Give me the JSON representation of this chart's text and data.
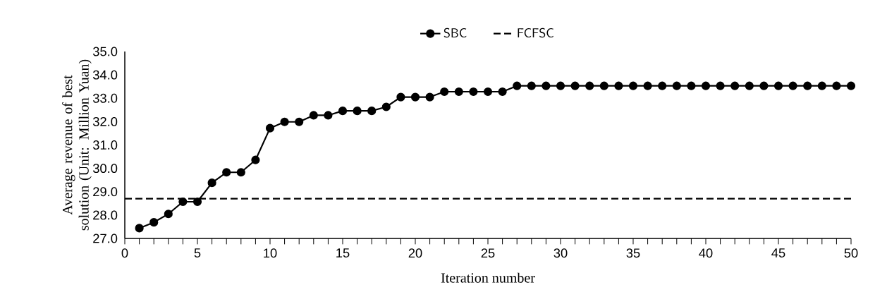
{
  "chart_data": {
    "type": "line",
    "xlabel": "Iteration number",
    "ylabel": "Average revenue of best solution (Unit: Million Yuan)",
    "x": [
      1,
      2,
      3,
      4,
      5,
      6,
      7,
      8,
      9,
      10,
      11,
      12,
      13,
      14,
      15,
      16,
      17,
      18,
      19,
      20,
      21,
      22,
      23,
      24,
      25,
      26,
      27,
      28,
      29,
      30,
      31,
      32,
      33,
      34,
      35,
      36,
      37,
      38,
      39,
      40,
      41,
      42,
      43,
      44,
      45,
      46,
      47,
      48,
      49,
      50
    ],
    "series": [
      {
        "name": "SBC",
        "color": "#000000",
        "marker": "circle",
        "line_style": "solid",
        "values": [
          27.44,
          27.69,
          28.05,
          28.57,
          28.57,
          29.38,
          29.83,
          29.83,
          30.36,
          31.72,
          31.99,
          31.99,
          32.27,
          32.27,
          32.46,
          32.46,
          32.46,
          32.63,
          33.05,
          33.05,
          33.05,
          33.28,
          33.28,
          33.28,
          33.28,
          33.28,
          33.53,
          33.53,
          33.53,
          33.53,
          33.53,
          33.53,
          33.53,
          33.53,
          33.53,
          33.53,
          33.53,
          33.53,
          33.53,
          33.53,
          33.53,
          33.53,
          33.53,
          33.53,
          33.53,
          33.53,
          33.53,
          33.53,
          33.53,
          33.53
        ]
      },
      {
        "name": "FCFSC",
        "color": "#000000",
        "marker": "none",
        "line_style": "dashed",
        "x": [
          0,
          50
        ],
        "values": [
          28.7,
          28.7
        ]
      }
    ],
    "xlim": [
      0,
      50
    ],
    "ylim": [
      27,
      35
    ],
    "xticks": [
      0,
      {
        "value": 1,
        "label": null
      },
      {
        "value": 2,
        "label": null
      },
      {
        "value": 3,
        "label": null
      },
      {
        "value": 4,
        "label": null
      },
      5,
      {
        "value": 6,
        "label": null
      },
      {
        "value": 7,
        "label": null
      },
      {
        "value": 8,
        "label": null
      },
      {
        "value": 9,
        "label": null
      },
      10,
      {
        "value": 11,
        "label": null
      },
      {
        "value": 12,
        "label": null
      },
      {
        "value": 13,
        "label": null
      },
      {
        "value": 14,
        "label": null
      },
      15,
      {
        "value": 16,
        "label": null
      },
      {
        "value": 17,
        "label": null
      },
      {
        "value": 18,
        "label": null
      },
      {
        "value": 19,
        "label": null
      },
      20,
      {
        "value": 21,
        "label": null
      },
      {
        "value": 22,
        "label": null
      },
      {
        "value": 23,
        "label": null
      },
      {
        "value": 24,
        "label": null
      },
      25,
      {
        "value": 26,
        "label": null
      },
      {
        "value": 27,
        "label": null
      },
      {
        "value": 28,
        "label": null
      },
      {
        "value": 29,
        "label": null
      },
      30,
      {
        "value": 31,
        "label": null
      },
      {
        "value": 32,
        "label": null
      },
      {
        "value": 33,
        "label": null
      },
      {
        "value": 34,
        "label": null
      },
      35,
      {
        "value": 36,
        "label": null
      },
      {
        "value": 37,
        "label": null
      },
      {
        "value": 38,
        "label": null
      },
      {
        "value": 39,
        "label": null
      },
      40,
      {
        "value": 41,
        "label": null
      },
      {
        "value": 42,
        "label": null
      },
      {
        "value": 43,
        "label": null
      },
      {
        "value": 44,
        "label": null
      },
      45,
      {
        "value": 46,
        "label": null
      },
      {
        "value": 47,
        "label": null
      },
      {
        "value": 48,
        "label": null
      },
      {
        "value": 49,
        "label": null
      },
      50
    ],
    "yticks": [
      {
        "value": 27,
        "label": "27.0"
      },
      {
        "value": 28,
        "label": "28.0"
      },
      {
        "value": 29,
        "label": "29.0"
      },
      {
        "value": 30,
        "label": "30.0"
      },
      {
        "value": 31,
        "label": "31.0"
      },
      {
        "value": 32,
        "label": "32.0"
      },
      {
        "value": 33,
        "label": "33.0"
      },
      {
        "value": 34,
        "label": "34.0"
      },
      {
        "value": 35,
        "label": "35.0"
      }
    ],
    "grid": false,
    "legend": "top"
  }
}
